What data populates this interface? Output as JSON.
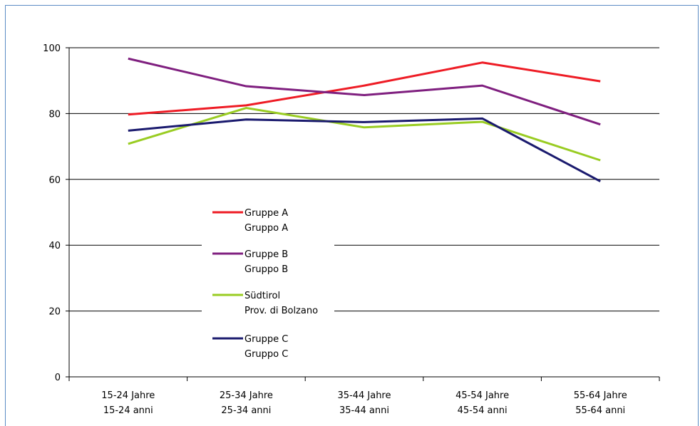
{
  "chart_data": {
    "type": "line",
    "title": "",
    "xlabel": "",
    "ylabel": "",
    "ylim": [
      0,
      100
    ],
    "yticks": [
      0,
      20,
      40,
      60,
      80,
      100
    ],
    "grid": true,
    "legend_position": "center-left",
    "categories": [
      [
        "15-24 Jahre",
        "15-24 anni"
      ],
      [
        "25-34 Jahre",
        "25-34 anni"
      ],
      [
        "35-44 Jahre",
        "35-44 anni"
      ],
      [
        "45-54 Jahre",
        "45-54 anni"
      ],
      [
        "55-64 Jahre",
        "55-64 anni"
      ]
    ],
    "series": [
      {
        "name": [
          "Gruppe A",
          "Gruppo A"
        ],
        "color": "#ee1c25",
        "values": [
          79.7,
          82.5,
          88.5,
          95.5,
          89.8
        ]
      },
      {
        "name": [
          "Gruppe B",
          "Gruppo B"
        ],
        "color": "#7f1f7f",
        "values": [
          96.7,
          88.3,
          85.6,
          88.5,
          76.7
        ]
      },
      {
        "name": [
          "Südtirol",
          "Prov. di Bolzano"
        ],
        "color": "#99cc22",
        "values": [
          70.8,
          81.7,
          75.8,
          77.5,
          65.8
        ]
      },
      {
        "name": [
          "Gruppe C",
          "Gruppo C"
        ],
        "color": "#1a1a6e",
        "values": [
          74.8,
          78.2,
          77.4,
          78.5,
          59.4
        ]
      }
    ]
  }
}
